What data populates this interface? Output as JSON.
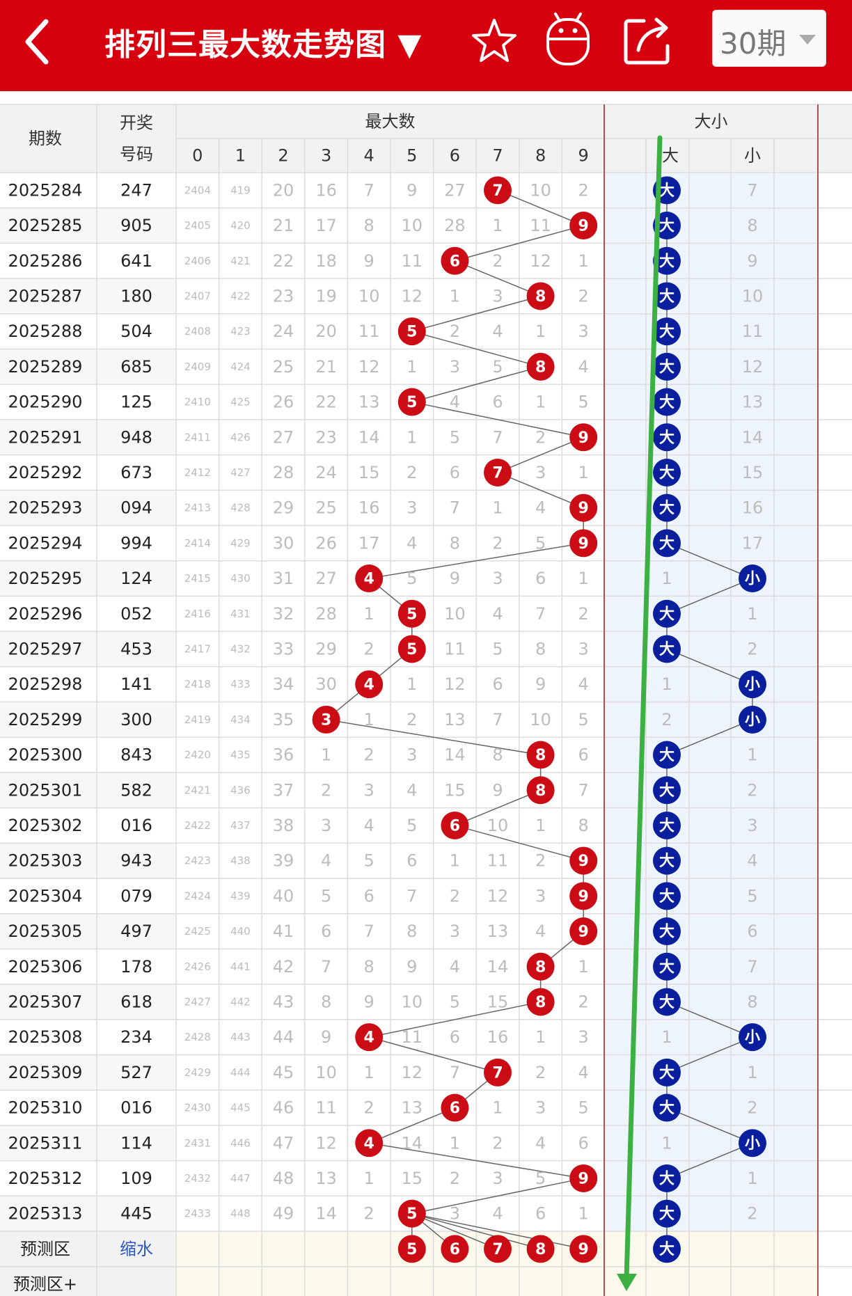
{
  "app": {
    "title": "排列三最大数走势图 ▼",
    "period_select": "30期"
  },
  "table": {
    "col_period": "期数",
    "col_draw_1": "开奖",
    "col_draw_2": "号码",
    "group_max": "最大数",
    "group_size": "大小",
    "digits": [
      "0",
      "1",
      "2",
      "3",
      "4",
      "5",
      "6",
      "7",
      "8",
      "9"
    ],
    "size_labels": [
      "大",
      "小"
    ],
    "rows": [
      {
        "p": "2025284",
        "d": "247",
        "m": [
          "2404",
          "419",
          "20",
          "16",
          "7",
          "9",
          "27",
          "7",
          "10",
          "2"
        ],
        "hit": 7,
        "big": true,
        "s": "7"
      },
      {
        "p": "2025285",
        "d": "905",
        "m": [
          "2405",
          "420",
          "21",
          "17",
          "8",
          "10",
          "28",
          "1",
          "11",
          "9"
        ],
        "hit": 9,
        "big": true,
        "s": "8"
      },
      {
        "p": "2025286",
        "d": "641",
        "m": [
          "2406",
          "421",
          "22",
          "18",
          "9",
          "11",
          "6",
          "2",
          "12",
          "1"
        ],
        "hit": 6,
        "big": true,
        "s": "9"
      },
      {
        "p": "2025287",
        "d": "180",
        "m": [
          "2407",
          "422",
          "23",
          "19",
          "10",
          "12",
          "1",
          "3",
          "8",
          "2"
        ],
        "hit": 8,
        "big": true,
        "s": "10"
      },
      {
        "p": "2025288",
        "d": "504",
        "m": [
          "2408",
          "423",
          "24",
          "20",
          "11",
          "5",
          "2",
          "4",
          "1",
          "3"
        ],
        "hit": 5,
        "big": true,
        "s": "11"
      },
      {
        "p": "2025289",
        "d": "685",
        "m": [
          "2409",
          "424",
          "25",
          "21",
          "12",
          "1",
          "3",
          "5",
          "8",
          "4"
        ],
        "hit": 8,
        "big": true,
        "s": "12"
      },
      {
        "p": "2025290",
        "d": "125",
        "m": [
          "2410",
          "425",
          "26",
          "22",
          "13",
          "5",
          "4",
          "6",
          "1",
          "5"
        ],
        "hit": 5,
        "big": true,
        "s": "13"
      },
      {
        "p": "2025291",
        "d": "948",
        "m": [
          "2411",
          "426",
          "27",
          "23",
          "14",
          "1",
          "5",
          "7",
          "2",
          "9"
        ],
        "hit": 9,
        "big": true,
        "s": "14"
      },
      {
        "p": "2025292",
        "d": "673",
        "m": [
          "2412",
          "427",
          "28",
          "24",
          "15",
          "2",
          "6",
          "7",
          "3",
          "1"
        ],
        "hit": 7,
        "big": true,
        "s": "15"
      },
      {
        "p": "2025293",
        "d": "094",
        "m": [
          "2413",
          "428",
          "29",
          "25",
          "16",
          "3",
          "7",
          "1",
          "4",
          "9"
        ],
        "hit": 9,
        "big": true,
        "s": "16"
      },
      {
        "p": "2025294",
        "d": "994",
        "m": [
          "2414",
          "429",
          "30",
          "26",
          "17",
          "4",
          "8",
          "2",
          "5",
          "9"
        ],
        "hit": 9,
        "big": true,
        "s": "17"
      },
      {
        "p": "2025295",
        "d": "124",
        "m": [
          "2415",
          "430",
          "31",
          "27",
          "4",
          "5",
          "9",
          "3",
          "6",
          "1"
        ],
        "hit": 4,
        "big": false,
        "s": "1"
      },
      {
        "p": "2025296",
        "d": "052",
        "m": [
          "2416",
          "431",
          "32",
          "28",
          "1",
          "5",
          "10",
          "4",
          "7",
          "2"
        ],
        "hit": 5,
        "big": true,
        "s": "1"
      },
      {
        "p": "2025297",
        "d": "453",
        "m": [
          "2417",
          "432",
          "33",
          "29",
          "2",
          "5",
          "11",
          "5",
          "8",
          "3"
        ],
        "hit": 5,
        "big": true,
        "s": "2"
      },
      {
        "p": "2025298",
        "d": "141",
        "m": [
          "2418",
          "433",
          "34",
          "30",
          "4",
          "1",
          "12",
          "6",
          "9",
          "4"
        ],
        "hit": 4,
        "big": false,
        "s": "1"
      },
      {
        "p": "2025299",
        "d": "300",
        "m": [
          "2419",
          "434",
          "35",
          "3",
          "1",
          "2",
          "13",
          "7",
          "10",
          "5"
        ],
        "hit": 3,
        "big": false,
        "s": "2"
      },
      {
        "p": "2025300",
        "d": "843",
        "m": [
          "2420",
          "435",
          "36",
          "1",
          "2",
          "3",
          "14",
          "8",
          "8",
          "6"
        ],
        "hit": 8,
        "big": true,
        "s": "1"
      },
      {
        "p": "2025301",
        "d": "582",
        "m": [
          "2421",
          "436",
          "37",
          "2",
          "3",
          "4",
          "15",
          "9",
          "8",
          "7"
        ],
        "hit": 8,
        "big": true,
        "s": "2"
      },
      {
        "p": "2025302",
        "d": "016",
        "m": [
          "2422",
          "437",
          "38",
          "3",
          "4",
          "5",
          "6",
          "10",
          "1",
          "8"
        ],
        "hit": 6,
        "big": true,
        "s": "3"
      },
      {
        "p": "2025303",
        "d": "943",
        "m": [
          "2423",
          "438",
          "39",
          "4",
          "5",
          "6",
          "1",
          "11",
          "2",
          "9"
        ],
        "hit": 9,
        "big": true,
        "s": "4"
      },
      {
        "p": "2025304",
        "d": "079",
        "m": [
          "2424",
          "439",
          "40",
          "5",
          "6",
          "7",
          "2",
          "12",
          "3",
          "9"
        ],
        "hit": 9,
        "big": true,
        "s": "5"
      },
      {
        "p": "2025305",
        "d": "497",
        "m": [
          "2425",
          "440",
          "41",
          "6",
          "7",
          "8",
          "3",
          "13",
          "4",
          "9"
        ],
        "hit": 9,
        "big": true,
        "s": "6"
      },
      {
        "p": "2025306",
        "d": "178",
        "m": [
          "2426",
          "441",
          "42",
          "7",
          "8",
          "9",
          "4",
          "14",
          "8",
          "1"
        ],
        "hit": 8,
        "big": true,
        "s": "7"
      },
      {
        "p": "2025307",
        "d": "618",
        "m": [
          "2427",
          "442",
          "43",
          "8",
          "9",
          "10",
          "5",
          "15",
          "8",
          "2"
        ],
        "hit": 8,
        "big": true,
        "s": "8"
      },
      {
        "p": "2025308",
        "d": "234",
        "m": [
          "2428",
          "443",
          "44",
          "9",
          "4",
          "11",
          "6",
          "16",
          "1",
          "3"
        ],
        "hit": 4,
        "big": false,
        "s": "1"
      },
      {
        "p": "2025309",
        "d": "527",
        "m": [
          "2429",
          "444",
          "45",
          "10",
          "1",
          "12",
          "7",
          "7",
          "2",
          "4"
        ],
        "hit": 7,
        "big": true,
        "s": "1"
      },
      {
        "p": "2025310",
        "d": "016",
        "m": [
          "2430",
          "445",
          "46",
          "11",
          "2",
          "13",
          "6",
          "1",
          "3",
          "5"
        ],
        "hit": 6,
        "big": true,
        "s": "2"
      },
      {
        "p": "2025311",
        "d": "114",
        "m": [
          "2431",
          "446",
          "47",
          "12",
          "4",
          "14",
          "1",
          "2",
          "4",
          "6"
        ],
        "hit": 4,
        "big": false,
        "s": "1"
      },
      {
        "p": "2025312",
        "d": "109",
        "m": [
          "2432",
          "447",
          "48",
          "13",
          "1",
          "15",
          "2",
          "3",
          "5",
          "9"
        ],
        "hit": 9,
        "big": true,
        "s": "1"
      },
      {
        "p": "2025313",
        "d": "445",
        "m": [
          "2433",
          "448",
          "49",
          "14",
          "2",
          "5",
          "3",
          "4",
          "6",
          "1"
        ],
        "hit": 5,
        "big": true,
        "s": "2"
      }
    ],
    "predict_label": "预测区",
    "predict_link": "缩水",
    "predict_numbers": [
      5,
      6,
      7,
      8,
      9
    ],
    "predict_size": "大",
    "predict_plus_label": "预测区+"
  },
  "colors": {
    "header_red": "#d7000f",
    "ball_red": "#cc0c14",
    "ball_blue": "#0a1f9e",
    "line_green": "#3cb043",
    "predict_link": "#2a55c8"
  },
  "icons": [
    "back-icon",
    "star-icon",
    "android-icon",
    "share-icon",
    "dropdown-icon"
  ]
}
